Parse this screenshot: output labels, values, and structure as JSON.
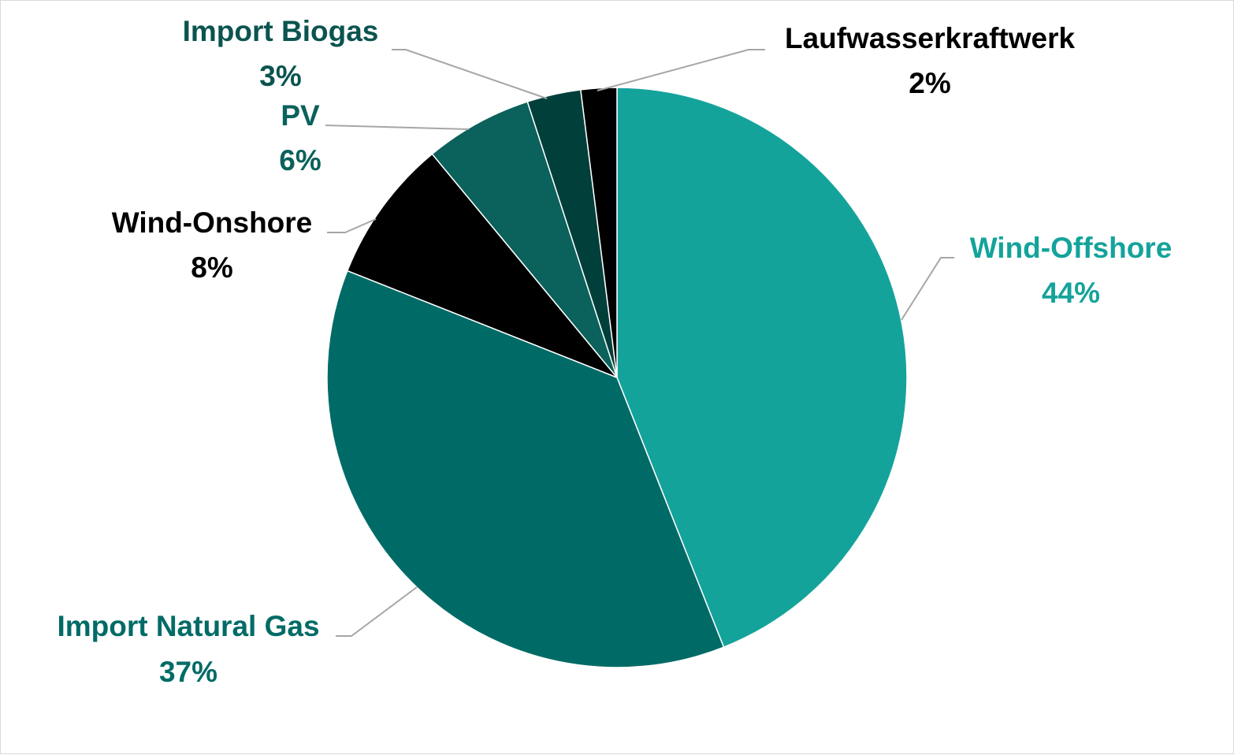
{
  "chart_data": {
    "type": "pie",
    "title": "",
    "slices": [
      {
        "name": "Wind-Offshore",
        "value": 44,
        "label": "44%",
        "color": "#14a39b",
        "label_color": "#14a39b"
      },
      {
        "name": "Import Natural Gas",
        "value": 37,
        "label": "37%",
        "color": "#006b66",
        "label_color": "#006b66"
      },
      {
        "name": "Wind-Onshore",
        "value": 8,
        "label": "8%",
        "color": "#000000",
        "label_color": "#000000"
      },
      {
        "name": "PV",
        "value": 6,
        "label": "6%",
        "color": "#0b615b",
        "label_color": "#0b615b"
      },
      {
        "name": "Import Biogas",
        "value": 3,
        "label": "3%",
        "color": "#013f3b",
        "label_color": "#0b544f"
      },
      {
        "name": "Laufwasserkraftwerk",
        "value": 2,
        "label": "2%",
        "color": "#000000",
        "label_color": "#000000"
      }
    ],
    "legend": "none",
    "start_angle": "12 o'clock",
    "direction": "clockwise"
  }
}
